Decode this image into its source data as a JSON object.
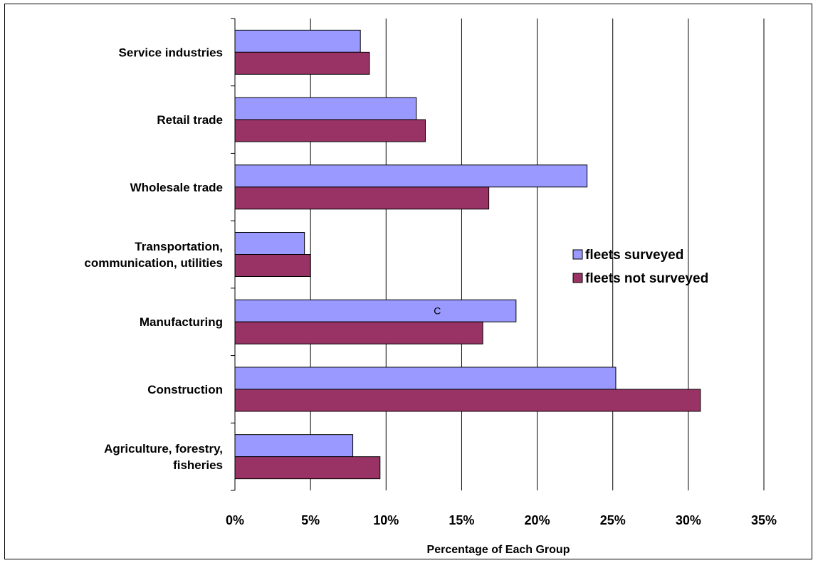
{
  "chart_data": {
    "type": "bar",
    "orientation": "horizontal",
    "categories": [
      "Service industries",
      "Retail trade",
      "Wholesale trade",
      "Transportation, communication, utilities",
      "Manufacturing",
      "Construction",
      "Agriculture, forestry, fisheries"
    ],
    "category_lines": [
      [
        "Service industries"
      ],
      [
        "Retail trade"
      ],
      [
        "Wholesale trade"
      ],
      [
        "Transportation,",
        "communication, utilities"
      ],
      [
        "Manufacturing"
      ],
      [
        "Construction"
      ],
      [
        "Agriculture, forestry,",
        "fisheries"
      ]
    ],
    "series": [
      {
        "name": "fleets surveyed",
        "color": "#9999ff",
        "values": [
          8.3,
          12.0,
          23.3,
          4.6,
          18.6,
          25.2,
          7.8
        ]
      },
      {
        "name": "fleets not surveyed",
        "color": "#993366",
        "values": [
          8.9,
          12.6,
          16.8,
          5.0,
          16.4,
          30.8,
          9.6
        ]
      }
    ],
    "xlabel": "Percentage of Each Group",
    "xlim": [
      0,
      35
    ],
    "xticks": [
      0,
      5,
      10,
      15,
      20,
      25,
      30,
      35
    ],
    "tick_format": "{v}%",
    "grid": "vertical",
    "legend_position": "right",
    "annotations": [
      {
        "text": "C",
        "category": "Manufacturing",
        "series": "fleets surveyed"
      }
    ]
  }
}
